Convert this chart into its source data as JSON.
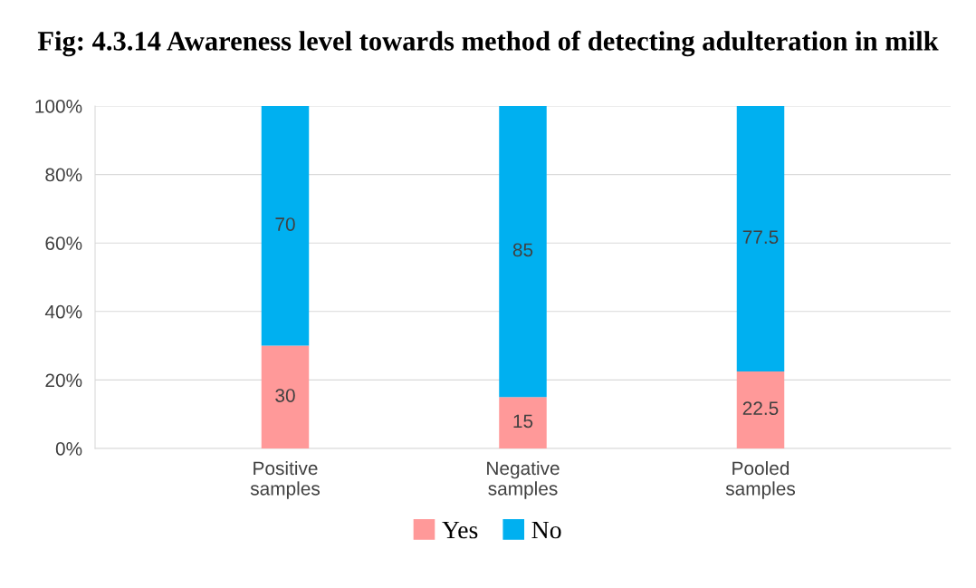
{
  "chart_data": {
    "type": "bar",
    "title": "Fig: 4.3.14 Awareness level towards method of detecting adulteration in milk",
    "categories": [
      "Positive\nsamples",
      "Negative\nsamples",
      "Pooled\nsamples"
    ],
    "series": [
      {
        "name": "Yes",
        "color": "#ff9999",
        "values": [
          30,
          15,
          22.5
        ]
      },
      {
        "name": "No",
        "color": "#00b0f0",
        "values": [
          70,
          85,
          77.5
        ]
      }
    ],
    "stacked": true,
    "data_labels": true,
    "ylim": [
      0,
      100
    ],
    "yticks": [
      {
        "value": 0,
        "label": "0%"
      },
      {
        "value": 20,
        "label": "20%"
      },
      {
        "value": 40,
        "label": "40%"
      },
      {
        "value": 60,
        "label": "60%"
      },
      {
        "value": 80,
        "label": "80%"
      },
      {
        "value": 100,
        "label": "100%"
      }
    ],
    "grid": "y",
    "legend": "bottom"
  }
}
